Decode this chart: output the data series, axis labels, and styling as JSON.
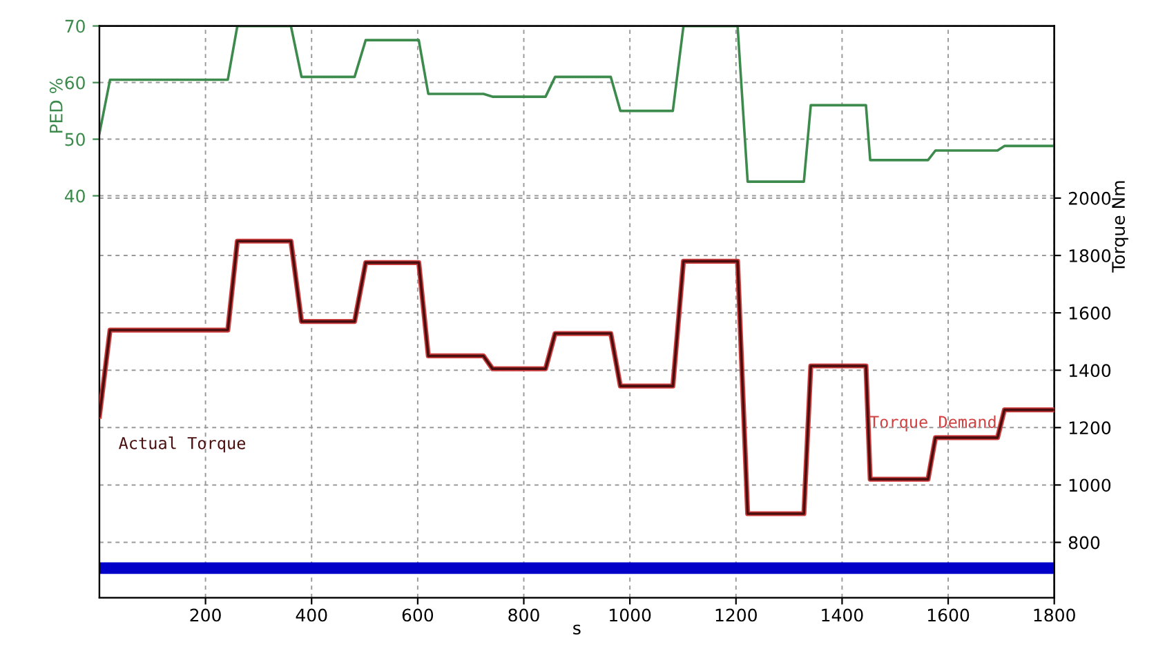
{
  "chart_data": {
    "type": "step",
    "xlabel": "s",
    "ylabel": "PED %",
    "y2label": "Torque Nm",
    "x": [
      0,
      20,
      242,
      260,
      361,
      381,
      481,
      502,
      602,
      620,
      724,
      741,
      841,
      859,
      964,
      982,
      1081,
      1101,
      1203,
      1222,
      1328,
      1341,
      1445,
      1453,
      1562,
      1576,
      1693,
      1706,
      1800
    ],
    "series": [
      {
        "color": "#3c8a4c",
        "values": [
          51,
          60.5,
          60.5,
          70,
          70,
          61,
          61,
          67.5,
          67.5,
          58,
          58,
          57.5,
          57.5,
          61,
          61,
          55,
          55,
          70,
          70,
          42.5,
          42.5,
          56,
          56,
          46.3,
          46.3,
          48,
          48,
          48.8,
          48.8
        ]
      },
      {
        "name": "Torque Demand",
        "axis": "y2",
        "color": "#d04040",
        "values": [
          1240,
          1540,
          1540,
          1850,
          1850,
          1570,
          1570,
          1775,
          1775,
          1450,
          1450,
          1405,
          1405,
          1528,
          1528,
          1345,
          1345,
          1780,
          1780,
          900,
          900,
          1415,
          1415,
          1020,
          1020,
          1165,
          1165,
          1262,
          1262
        ]
      },
      {
        "name": "Actual Torque",
        "axis": "y2",
        "color": "#4a0e0e",
        "values": [
          1240,
          1540,
          1540,
          1850,
          1850,
          1570,
          1570,
          1775,
          1775,
          1450,
          1450,
          1405,
          1405,
          1528,
          1528,
          1345,
          1345,
          1780,
          1780,
          900,
          900,
          1415,
          1415,
          1020,
          1020,
          1165,
          1165,
          1262,
          1262
        ]
      }
    ],
    "xlim": [
      0,
      1800
    ],
    "xticks": [
      200,
      400,
      600,
      800,
      1000,
      1200,
      1400,
      1600,
      1800
    ],
    "ylim": [
      -31,
      70
    ],
    "yticks": [
      40,
      50,
      60,
      70
    ],
    "y2lim": [
      607,
      2600
    ],
    "y2ticks": [
      800,
      1000,
      1200,
      1400,
      1600,
      1800,
      2000
    ],
    "ref_lines": [
      {
        "axis": "y2",
        "value": 710,
        "color": "#0000c8"
      }
    ],
    "grid": true,
    "line_style": "solid",
    "legend": false
  }
}
